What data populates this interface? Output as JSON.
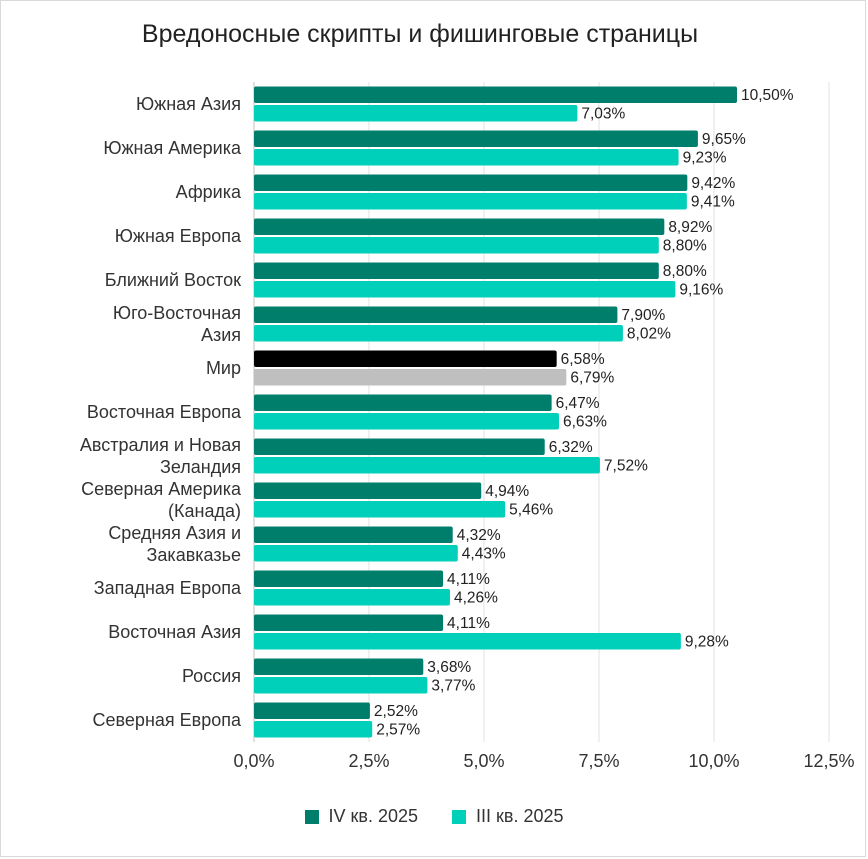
{
  "colors": {
    "q4": "#007e6c",
    "q3": "#00cfb9",
    "world_q4": "#000000",
    "world_q3": "#bfbfbf",
    "grid": "#e0e0e0"
  },
  "chart_data": {
    "type": "bar",
    "orientation": "horizontal",
    "title": "Вредоносные скрипты и фишинговые страницы",
    "categories": [
      "Южная Азия",
      "Южная Америка",
      "Африка",
      "Южная Европа",
      "Ближний Восток",
      "Юго-Восточная Азия",
      "Мир",
      "Восточная Европа",
      "Австралия и Новая Зеландия",
      "Северная Америка (Канада)",
      "Средняя Азия и Закавказье",
      "Западная Европа",
      "Восточная Азия",
      "Россия",
      "Северная Европа"
    ],
    "category_lines": [
      [
        "Южная Азия"
      ],
      [
        "Южная Америка"
      ],
      [
        "Африка"
      ],
      [
        "Южная Европа"
      ],
      [
        "Ближний Восток"
      ],
      [
        "Юго-Восточная",
        "Азия"
      ],
      [
        "Мир"
      ],
      [
        "Восточная Европа"
      ],
      [
        "Австралия и Новая",
        "Зеландия"
      ],
      [
        "Северная Америка",
        "(Канада)"
      ],
      [
        "Средняя Азия и",
        "Закавказье"
      ],
      [
        "Западная Европа"
      ],
      [
        "Восточная Азия"
      ],
      [
        "Россия"
      ],
      [
        "Северная Европа"
      ]
    ],
    "series": [
      {
        "name": "IV кв. 2025",
        "values": [
          10.5,
          9.65,
          9.42,
          8.92,
          8.8,
          7.9,
          6.58,
          6.47,
          6.32,
          4.94,
          4.32,
          4.11,
          4.11,
          3.68,
          2.52
        ],
        "labels": [
          "10,50%",
          "9,65%",
          "9,42%",
          "8,92%",
          "8,80%",
          "7,90%",
          "6,58%",
          "6,47%",
          "6,32%",
          "4,94%",
          "4,32%",
          "4,11%",
          "4,11%",
          "3,68%",
          "2,52%"
        ]
      },
      {
        "name": "III кв. 2025",
        "values": [
          7.03,
          9.23,
          9.41,
          8.8,
          9.16,
          8.02,
          6.79,
          6.63,
          7.52,
          5.46,
          4.43,
          4.26,
          9.28,
          3.77,
          2.57
        ],
        "labels": [
          "7,03%",
          "9,23%",
          "9,41%",
          "8,80%",
          "9,16%",
          "8,02%",
          "6,79%",
          "6,63%",
          "7,52%",
          "5,46%",
          "4,43%",
          "4,26%",
          "9,28%",
          "3,77%",
          "2,57%"
        ]
      }
    ],
    "xlim": [
      0,
      12.5
    ],
    "xticks": [
      0,
      2.5,
      5,
      7.5,
      10,
      12.5
    ],
    "xtick_labels": [
      "0,0%",
      "2,5%",
      "5,0%",
      "7,5%",
      "10,0%",
      "12,5%"
    ],
    "grid": true,
    "legend_position": "bottom"
  }
}
